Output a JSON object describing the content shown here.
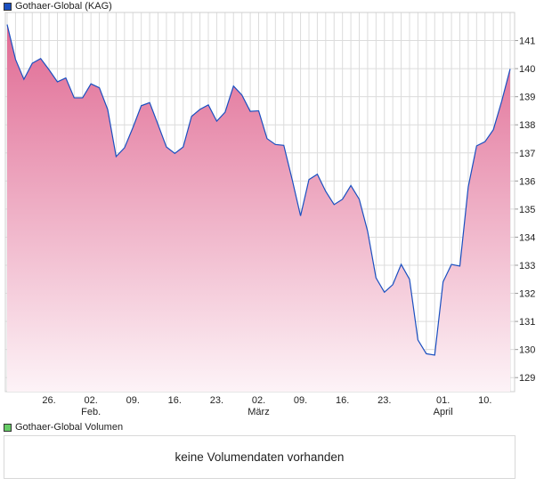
{
  "legend_main": {
    "label": "Gothaer-Global (KAG)",
    "color": "#1a4fc0"
  },
  "legend_volume": {
    "label": "Gothaer-Global Volumen",
    "color": "#66cc66"
  },
  "volume_message": "keine Volumendaten vorhanden",
  "chart_data": {
    "type": "area",
    "series": [
      {
        "name": "Gothaer-Global (KAG)",
        "line_color": "#1a4fc0",
        "fill_top": "#e06a93",
        "fill_bottom": "#fdf3f7",
        "values": [
          141.57,
          140.33,
          139.62,
          140.19,
          140.36,
          139.96,
          139.53,
          139.67,
          138.96,
          138.96,
          139.46,
          139.32,
          138.54,
          136.87,
          137.18,
          137.9,
          138.68,
          138.79,
          138.01,
          137.21,
          136.98,
          137.21,
          138.3,
          138.55,
          138.71,
          138.13,
          138.45,
          139.38,
          139.06,
          138.48,
          138.5,
          137.51,
          137.3,
          137.27,
          136.05,
          134.76,
          136.05,
          136.24,
          135.63,
          135.16,
          135.35,
          135.84,
          135.35,
          134.21,
          132.55,
          132.04,
          132.31,
          133.03,
          132.5,
          130.34,
          129.85,
          129.8,
          132.41,
          133.03,
          132.97,
          135.79,
          137.25,
          137.4,
          137.83,
          138.85,
          139.99
        ]
      }
    ],
    "x": [
      "19.01.",
      "20.01.",
      "21.01.",
      "22.01.",
      "23.01.",
      "26.01.",
      "27.01.",
      "28.01.",
      "29.01.",
      "30.01.",
      "02.02.",
      "03.02.",
      "04.02.",
      "05.02.",
      "06.02.",
      "09.02.",
      "10.02.",
      "11.02.",
      "12.02.",
      "13.02.",
      "16.02.",
      "17.02.",
      "18.02.",
      "19.02.",
      "20.02.",
      "23.02.",
      "24.02.",
      "25.02.",
      "26.02.",
      "27.02.",
      "02.03.",
      "03.03.",
      "04.03.",
      "05.03.",
      "06.03.",
      "09.03.",
      "10.03.",
      "11.03.",
      "12.03.",
      "13.03.",
      "16.03.",
      "17.03.",
      "18.03.",
      "19.03.",
      "20.03.",
      "23.03.",
      "24.03.",
      "25.03.",
      "26.03.",
      "27.03.",
      "30.03.",
      "31.03.",
      "01.04.",
      "02.04.",
      "07.04.",
      "08.04.",
      "09.04.",
      "10.04.",
      "13.04.",
      "14.04.",
      "15.04."
    ],
    "x_ticks": [
      {
        "at": "26.01.",
        "label": "26.",
        "month": ""
      },
      {
        "at": "02.02.",
        "label": "02.",
        "month": "Feb."
      },
      {
        "at": "09.02.",
        "label": "09.",
        "month": ""
      },
      {
        "at": "16.02.",
        "label": "16.",
        "month": ""
      },
      {
        "at": "23.02.",
        "label": "23.",
        "month": ""
      },
      {
        "at": "02.03.",
        "label": "02.",
        "month": "März"
      },
      {
        "at": "09.03.",
        "label": "09.",
        "month": ""
      },
      {
        "at": "16.03.",
        "label": "16.",
        "month": ""
      },
      {
        "at": "23.03.",
        "label": "23.",
        "month": ""
      },
      {
        "at": "01.04.",
        "label": "01.",
        "month": "April"
      },
      {
        "at": "10.04.",
        "label": "10.",
        "month": ""
      }
    ],
    "y_ticks": [
      129,
      130,
      131,
      132,
      133,
      134,
      135,
      136,
      137,
      138,
      139,
      140,
      141
    ],
    "ylim": [
      128.5,
      142
    ],
    "y_axis_side": "right",
    "grid": true,
    "legend_placement": "top-left"
  }
}
